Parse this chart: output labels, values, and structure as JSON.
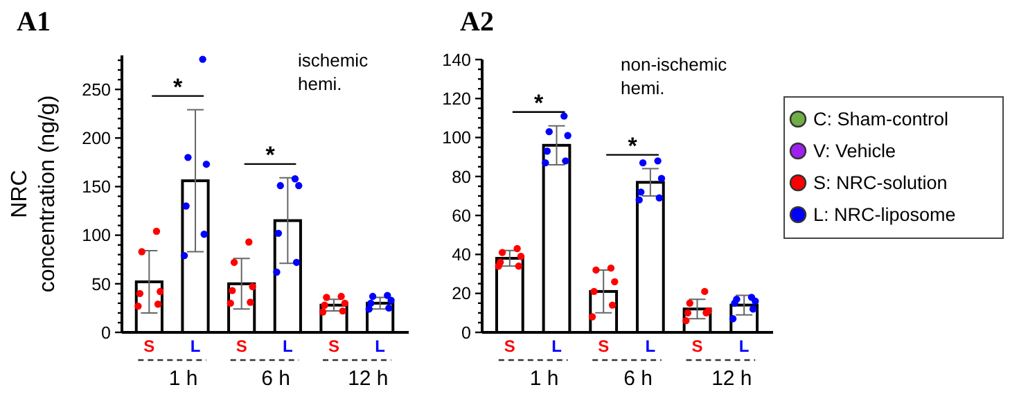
{
  "chart_data": [
    {
      "type": "bar",
      "title": "A1",
      "ylabel": "NRC concentration (ng/g)",
      "categories": [
        "S",
        "L",
        "S",
        "L",
        "S",
        "L"
      ],
      "ylim": [
        0,
        285
      ],
      "yticks": [
        0,
        {
          "value": 10,
          "label": null
        },
        {
          "value": 20,
          "label": null
        },
        {
          "value": 30,
          "label": null
        },
        {
          "value": 40,
          "label": null
        },
        50,
        {
          "value": 60,
          "label": null
        },
        {
          "value": 70,
          "label": null
        },
        {
          "value": 80,
          "label": null
        },
        {
          "value": 90,
          "label": null
        },
        100,
        {
          "value": 110,
          "label": null
        },
        {
          "value": 120,
          "label": null
        },
        {
          "value": 130,
          "label": null
        },
        {
          "value": 140,
          "label": null
        },
        150,
        {
          "value": 160,
          "label": null
        },
        {
          "value": 170,
          "label": null
        },
        {
          "value": 180,
          "label": null
        },
        {
          "value": 190,
          "label": null
        },
        200,
        {
          "value": 210,
          "label": null
        },
        {
          "value": 220,
          "label": null
        },
        {
          "value": 230,
          "label": null
        },
        {
          "value": 240,
          "label": null
        },
        250,
        {
          "value": 260,
          "label": null
        },
        {
          "value": 270,
          "label": null
        },
        {
          "value": 280,
          "label": null
        }
      ],
      "series": [
        {
          "type": "bar",
          "color": "#ffffff",
          "values": [
            52,
            156,
            50,
            115,
            28,
            30
          ],
          "errors": [
            32,
            73,
            26,
            44,
            6,
            6
          ]
        },
        {
          "type": "scatter",
          "color": "#ff0000",
          "values": [
            104,
            null,
            93,
            null,
            37,
            null
          ]
        },
        {
          "type": "scatter",
          "color": "#ff0000",
          "values": [
            83,
            null,
            72,
            null,
            36,
            null
          ]
        },
        {
          "type": "scatter",
          "color": "#ff0000",
          "values": [
            42,
            null,
            47,
            null,
            30,
            null
          ]
        },
        {
          "type": "scatter",
          "color": "#ff0000",
          "values": [
            40,
            null,
            43,
            null,
            28,
            null
          ]
        },
        {
          "type": "scatter",
          "color": "#ff0000",
          "values": [
            29,
            null,
            31,
            null,
            22,
            null
          ]
        },
        {
          "type": "scatter",
          "color": "#ff0000",
          "values": [
            27,
            null,
            30,
            null,
            21,
            null
          ]
        },
        {
          "type": "scatter",
          "color": "#0000ff",
          "values": [
            null,
            281,
            null,
            158,
            null,
            38
          ]
        },
        {
          "type": "scatter",
          "color": "#0000ff",
          "values": [
            null,
            180,
            null,
            151,
            null,
            37
          ]
        },
        {
          "type": "scatter",
          "color": "#0000ff",
          "values": [
            null,
            173,
            null,
            151,
            null,
            33
          ]
        },
        {
          "type": "scatter",
          "color": "#0000ff",
          "values": [
            null,
            130,
            null,
            102,
            null,
            30
          ]
        },
        {
          "type": "scatter",
          "color": "#0000ff",
          "values": [
            null,
            101,
            null,
            72,
            null,
            25
          ]
        },
        {
          "type": "scatter",
          "color": "#0000ff",
          "values": [
            null,
            79,
            null,
            62,
            null,
            24
          ]
        }
      ],
      "annotations": [
        "ischemic hemi.",
        "*",
        "*",
        "1 h",
        "6 h",
        "12 h"
      ]
    },
    {
      "type": "bar",
      "title": "A2",
      "categories": [
        "S",
        "L",
        "S",
        "L",
        "S",
        "L"
      ],
      "ylim": [
        0,
        140
      ],
      "yticks": [
        0,
        {
          "value": 5,
          "label": null
        },
        {
          "value": 10,
          "label": null
        },
        {
          "value": 15,
          "label": null
        },
        20,
        {
          "value": 25,
          "label": null
        },
        {
          "value": 30,
          "label": null
        },
        {
          "value": 35,
          "label": null
        },
        40,
        {
          "value": 45,
          "label": null
        },
        {
          "value": 50,
          "label": null
        },
        {
          "value": 55,
          "label": null
        },
        60,
        {
          "value": 65,
          "label": null
        },
        {
          "value": 70,
          "label": null
        },
        {
          "value": 75,
          "label": null
        },
        80,
        {
          "value": 85,
          "label": null
        },
        {
          "value": 90,
          "label": null
        },
        {
          "value": 95,
          "label": null
        },
        100,
        {
          "value": 105,
          "label": null
        },
        {
          "value": 110,
          "label": null
        },
        {
          "value": 115,
          "label": null
        },
        120,
        {
          "value": 125,
          "label": null
        },
        {
          "value": 130,
          "label": null
        },
        {
          "value": 135,
          "label": null
        },
        140
      ],
      "series": [
        {
          "type": "bar",
          "color": "#ffffff",
          "values": [
            38,
            96,
            21,
            77,
            12,
            14
          ],
          "errors": [
            4,
            10,
            11,
            7,
            5,
            5
          ]
        },
        {
          "type": "scatter",
          "color": "#ff0000",
          "values": [
            43,
            null,
            33,
            null,
            21,
            null
          ]
        },
        {
          "type": "scatter",
          "color": "#ff0000",
          "values": [
            41,
            null,
            32,
            null,
            15,
            null
          ]
        },
        {
          "type": "scatter",
          "color": "#ff0000",
          "values": [
            39,
            null,
            26,
            null,
            11,
            null
          ]
        },
        {
          "type": "scatter",
          "color": "#ff0000",
          "values": [
            36,
            null,
            21,
            null,
            10,
            null
          ]
        },
        {
          "type": "scatter",
          "color": "#ff0000",
          "values": [
            34,
            null,
            14,
            null,
            10,
            null
          ]
        },
        {
          "type": "scatter",
          "color": "#ff0000",
          "values": [
            34,
            null,
            8,
            null,
            6,
            null
          ]
        },
        {
          "type": "scatter",
          "color": "#0000ff",
          "values": [
            null,
            111,
            null,
            88,
            null,
            18
          ]
        },
        {
          "type": "scatter",
          "color": "#0000ff",
          "values": [
            null,
            103,
            null,
            87,
            null,
            17
          ]
        },
        {
          "type": "scatter",
          "color": "#0000ff",
          "values": [
            null,
            101,
            null,
            79,
            null,
            16
          ]
        },
        {
          "type": "scatter",
          "color": "#0000ff",
          "values": [
            null,
            93,
            null,
            72,
            null,
            15
          ]
        },
        {
          "type": "scatter",
          "color": "#0000ff",
          "values": [
            null,
            88,
            null,
            69,
            null,
            12
          ]
        },
        {
          "type": "scatter",
          "color": "#0000ff",
          "values": [
            null,
            87,
            null,
            68,
            null,
            7
          ]
        }
      ],
      "annotations": [
        "non-ischemic hemi.",
        "*",
        "*",
        "1 h",
        "6 h",
        "12 h"
      ]
    },
    {
      "type": "other",
      "legend": "right",
      "series": [
        {
          "name": "C: Sham-control",
          "color": "#70ad47"
        },
        {
          "name": "V: Vehicle",
          "color": "#a020f0"
        },
        {
          "name": "S: NRC-solution",
          "color": "#ff0000"
        },
        {
          "name": "L: NRC-liposome",
          "color": "#0000ff"
        }
      ]
    }
  ]
}
